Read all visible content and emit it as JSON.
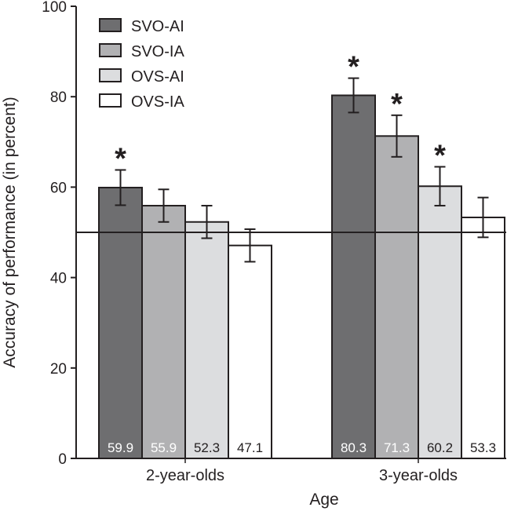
{
  "chart_data": {
    "type": "bar",
    "title": "",
    "xlabel": "Age",
    "ylabel": "Accuracy of performance (in percent)",
    "ylim": [
      0,
      100
    ],
    "yticks": [
      0,
      20,
      40,
      60,
      80,
      100
    ],
    "categories": [
      "2-year-olds",
      "3-year-olds"
    ],
    "reference_line": 50,
    "legend_position": "top-left",
    "series": [
      {
        "name": "SVO-AI",
        "color": "#6e6e70",
        "values": [
          59.9,
          80.3
        ],
        "labels": [
          "59.9",
          "80.3"
        ],
        "error": [
          3.9,
          3.8
        ],
        "significant": [
          true,
          true
        ],
        "label_color": "#ffffff"
      },
      {
        "name": "SVO-IA",
        "color": "#b1b1b3",
        "values": [
          55.9,
          71.3
        ],
        "labels": [
          "55.9",
          "71.3"
        ],
        "error": [
          3.6,
          4.6
        ],
        "significant": [
          false,
          true
        ],
        "label_color": "#ffffff"
      },
      {
        "name": "OVS-AI",
        "color": "#dcdddf",
        "values": [
          52.3,
          60.2
        ],
        "labels": [
          "52.3",
          "60.2"
        ],
        "error": [
          3.6,
          4.3
        ],
        "significant": [
          false,
          true
        ],
        "label_color": "#231f20"
      },
      {
        "name": "OVS-IA",
        "color": "#ffffff",
        "values": [
          47.1,
          53.3
        ],
        "labels": [
          "47.1",
          "53.3"
        ],
        "error": [
          3.6,
          4.4
        ],
        "significant": [
          false,
          false
        ],
        "label_color": "#231f20"
      }
    ],
    "significance_marker": "*"
  }
}
